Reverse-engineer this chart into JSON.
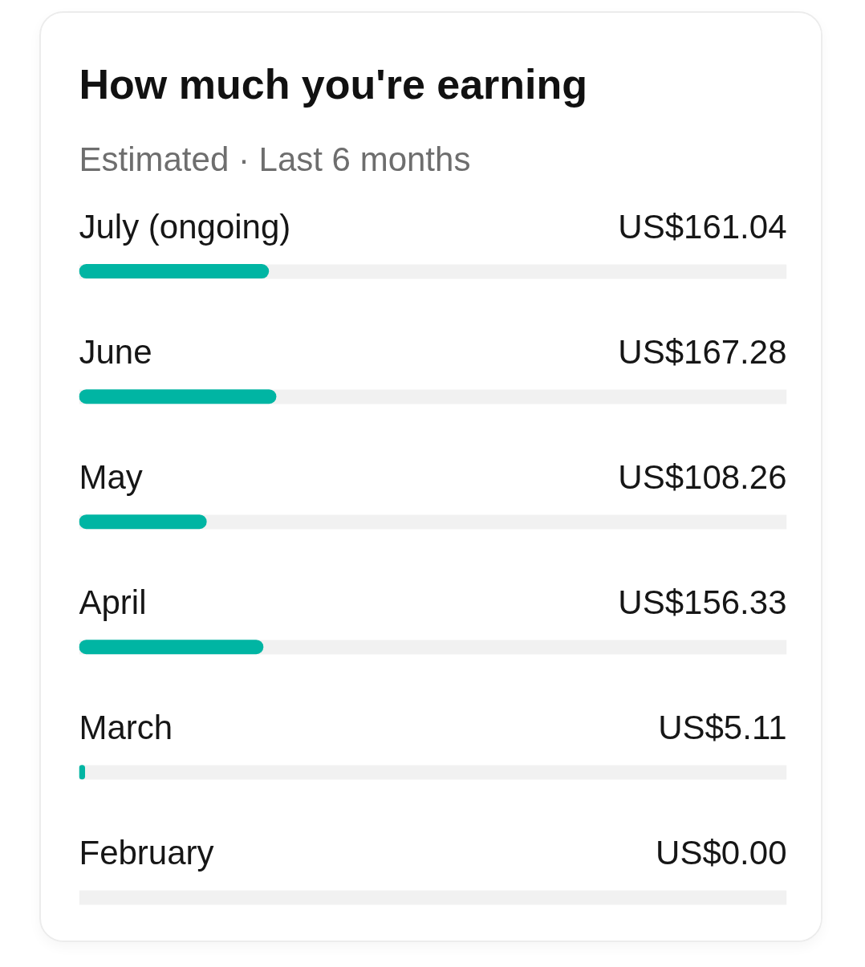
{
  "chart_data": {
    "type": "bar",
    "orientation": "horizontal",
    "title": "How much you're earning",
    "subtitle": "Estimated · Last 6 months",
    "categories": [
      "July (ongoing)",
      "June",
      "May",
      "April",
      "March",
      "February"
    ],
    "values": [
      161.04,
      167.28,
      108.26,
      156.33,
      5.11,
      0.0
    ],
    "color": "#00b5a3",
    "value_labels": [
      "US$161.04",
      "US$167.28",
      "US$108.26",
      "US$156.33",
      "US$5.11",
      "US$0.00"
    ],
    "xlim": [
      0,
      600
    ],
    "tick_labels": false,
    "grid": "y"
  }
}
